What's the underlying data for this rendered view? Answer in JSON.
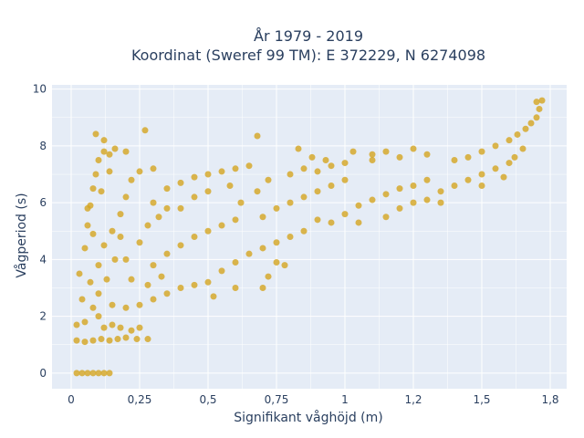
{
  "chart_data": {
    "type": "scatter",
    "title_lines": [
      "År 1979 - 2019",
      "Koordinat (Sweref 99 TM): E 372229, N 6274098"
    ],
    "xlabel": "Signifikant våghöjd (m)",
    "ylabel": "Vågperiod (s)",
    "xlim": [
      -0.07,
      1.81
    ],
    "ylim": [
      -0.55,
      10.15
    ],
    "x_ticks": [
      {
        "value": 0,
        "label": "0"
      },
      {
        "value": 0.25,
        "label": "0,25"
      },
      {
        "value": 0.5,
        "label": "0,5"
      },
      {
        "value": 0.75,
        "label": "0,75"
      },
      {
        "value": 1,
        "label": "1"
      },
      {
        "value": 1.25,
        "label": "1,2"
      },
      {
        "value": 1.5,
        "label": "1,5"
      },
      {
        "value": 1.75,
        "label": "1,8"
      }
    ],
    "y_ticks": [
      {
        "value": 0,
        "label": "0"
      },
      {
        "value": 2,
        "label": "2"
      },
      {
        "value": 4,
        "label": "4"
      },
      {
        "value": 6,
        "label": "6"
      },
      {
        "value": 8,
        "label": "8"
      },
      {
        "value": 10,
        "label": "10"
      }
    ],
    "grid": true,
    "marker_color": "#d4a521",
    "plot_background": "#e5ecf6",
    "series": [
      {
        "values": [
          [
            0.02,
            0.0
          ],
          [
            0.04,
            0.0
          ],
          [
            0.06,
            0.0
          ],
          [
            0.08,
            0.0
          ],
          [
            0.1,
            0.0
          ],
          [
            0.12,
            0.0
          ],
          [
            0.14,
            0.0
          ],
          [
            0.02,
            1.15
          ],
          [
            0.05,
            1.1
          ],
          [
            0.08,
            1.15
          ],
          [
            0.11,
            1.2
          ],
          [
            0.14,
            1.15
          ],
          [
            0.17,
            1.2
          ],
          [
            0.2,
            1.25
          ],
          [
            0.24,
            1.2
          ],
          [
            0.28,
            1.2
          ],
          [
            0.02,
            1.7
          ],
          [
            0.04,
            2.6
          ],
          [
            0.03,
            3.5
          ],
          [
            0.05,
            4.4
          ],
          [
            0.06,
            5.2
          ],
          [
            0.07,
            5.9
          ],
          [
            0.08,
            6.5
          ],
          [
            0.09,
            7.0
          ],
          [
            0.1,
            7.5
          ],
          [
            0.12,
            7.8
          ],
          [
            0.14,
            7.7
          ],
          [
            0.16,
            7.9
          ],
          [
            0.2,
            7.8
          ],
          [
            0.09,
            8.42
          ],
          [
            0.27,
            8.55
          ],
          [
            0.12,
            8.2
          ],
          [
            0.05,
            1.8
          ],
          [
            0.08,
            2.3
          ],
          [
            0.1,
            2.0
          ],
          [
            0.12,
            1.6
          ],
          [
            0.15,
            1.7
          ],
          [
            0.18,
            1.6
          ],
          [
            0.22,
            1.5
          ],
          [
            0.25,
            1.6
          ],
          [
            0.07,
            3.2
          ],
          [
            0.1,
            3.8
          ],
          [
            0.12,
            4.5
          ],
          [
            0.15,
            5.0
          ],
          [
            0.18,
            5.6
          ],
          [
            0.2,
            6.2
          ],
          [
            0.22,
            6.8
          ],
          [
            0.25,
            7.1
          ],
          [
            0.3,
            7.2
          ],
          [
            0.15,
            2.4
          ],
          [
            0.2,
            2.3
          ],
          [
            0.25,
            2.4
          ],
          [
            0.3,
            2.6
          ],
          [
            0.35,
            2.8
          ],
          [
            0.4,
            3.0
          ],
          [
            0.45,
            3.1
          ],
          [
            0.5,
            3.2
          ],
          [
            0.3,
            3.8
          ],
          [
            0.35,
            4.2
          ],
          [
            0.4,
            4.5
          ],
          [
            0.45,
            4.8
          ],
          [
            0.5,
            5.0
          ],
          [
            0.55,
            5.2
          ],
          [
            0.6,
            5.4
          ],
          [
            0.3,
            6.0
          ],
          [
            0.35,
            6.5
          ],
          [
            0.4,
            6.7
          ],
          [
            0.45,
            6.9
          ],
          [
            0.5,
            7.0
          ],
          [
            0.55,
            7.1
          ],
          [
            0.6,
            7.2
          ],
          [
            0.65,
            7.3
          ],
          [
            0.68,
            8.35
          ],
          [
            0.55,
            3.6
          ],
          [
            0.6,
            3.9
          ],
          [
            0.65,
            4.2
          ],
          [
            0.7,
            4.4
          ],
          [
            0.75,
            4.6
          ],
          [
            0.8,
            4.8
          ],
          [
            0.85,
            5.0
          ],
          [
            0.7,
            5.5
          ],
          [
            0.75,
            5.8
          ],
          [
            0.8,
            6.0
          ],
          [
            0.85,
            6.2
          ],
          [
            0.9,
            6.4
          ],
          [
            0.95,
            6.6
          ],
          [
            1.0,
            6.8
          ],
          [
            0.8,
            7.0
          ],
          [
            0.85,
            7.2
          ],
          [
            0.9,
            7.1
          ],
          [
            0.95,
            7.3
          ],
          [
            1.0,
            7.4
          ],
          [
            1.1,
            7.5
          ],
          [
            1.2,
            7.6
          ],
          [
            1.3,
            7.7
          ],
          [
            0.83,
            7.9
          ],
          [
            1.03,
            7.8
          ],
          [
            1.1,
            7.7
          ],
          [
            0.7,
            3.0
          ],
          [
            0.72,
            3.4
          ],
          [
            0.75,
            3.9
          ],
          [
            0.78,
            3.8
          ],
          [
            0.6,
            3.0
          ],
          [
            0.52,
            2.7
          ],
          [
            1.0,
            5.6
          ],
          [
            1.05,
            5.9
          ],
          [
            1.1,
            6.1
          ],
          [
            1.15,
            6.3
          ],
          [
            1.2,
            6.5
          ],
          [
            1.25,
            6.6
          ],
          [
            1.3,
            6.8
          ],
          [
            1.3,
            6.1
          ],
          [
            1.35,
            6.4
          ],
          [
            1.4,
            6.6
          ],
          [
            1.45,
            6.8
          ],
          [
            1.5,
            7.0
          ],
          [
            1.55,
            7.2
          ],
          [
            1.6,
            7.4
          ],
          [
            1.4,
            7.5
          ],
          [
            1.45,
            7.6
          ],
          [
            1.5,
            7.8
          ],
          [
            1.55,
            8.0
          ],
          [
            1.6,
            8.2
          ],
          [
            1.63,
            8.4
          ],
          [
            1.66,
            8.6
          ],
          [
            1.68,
            8.8
          ],
          [
            1.7,
            9.0
          ],
          [
            1.71,
            9.3
          ],
          [
            1.72,
            9.6
          ],
          [
            1.7,
            9.55
          ],
          [
            1.2,
            5.8
          ],
          [
            1.25,
            6.0
          ],
          [
            1.35,
            6.0
          ],
          [
            1.5,
            6.6
          ],
          [
            1.58,
            6.9
          ],
          [
            1.62,
            7.6
          ],
          [
            1.65,
            7.9
          ],
          [
            0.4,
            5.8
          ],
          [
            0.45,
            6.2
          ],
          [
            0.5,
            6.4
          ],
          [
            0.58,
            6.6
          ],
          [
            0.62,
            6.0
          ],
          [
            0.68,
            6.4
          ],
          [
            0.72,
            6.8
          ],
          [
            0.2,
            4.0
          ],
          [
            0.25,
            4.6
          ],
          [
            0.28,
            5.2
          ],
          [
            0.32,
            5.5
          ],
          [
            0.35,
            5.8
          ],
          [
            0.22,
            3.3
          ],
          [
            0.28,
            3.1
          ],
          [
            0.33,
            3.4
          ],
          [
            0.1,
            2.8
          ],
          [
            0.13,
            3.3
          ],
          [
            0.16,
            4.0
          ],
          [
            0.18,
            4.8
          ],
          [
            0.08,
            4.9
          ],
          [
            0.06,
            5.8
          ],
          [
            0.11,
            6.4
          ],
          [
            0.14,
            7.1
          ],
          [
            0.9,
            5.4
          ],
          [
            0.95,
            5.3
          ],
          [
            1.05,
            5.3
          ],
          [
            1.15,
            5.5
          ],
          [
            0.88,
            7.6
          ],
          [
            0.93,
            7.5
          ],
          [
            1.15,
            7.8
          ],
          [
            1.25,
            7.9
          ]
        ]
      }
    ]
  }
}
